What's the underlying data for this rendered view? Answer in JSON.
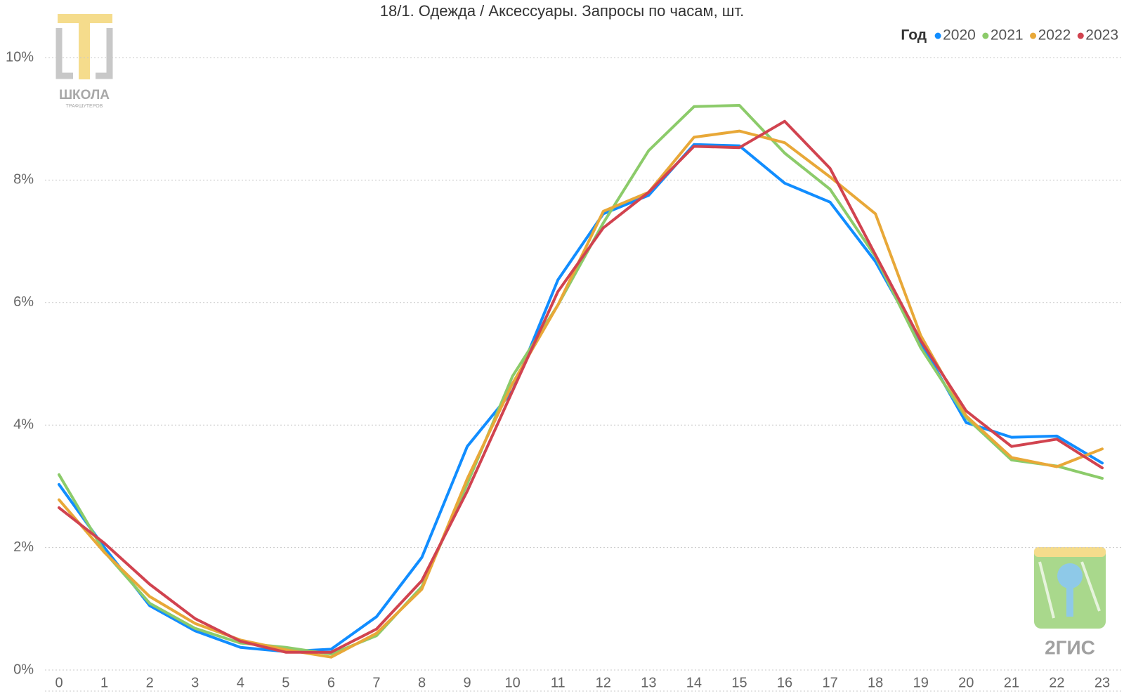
{
  "chart_data": {
    "type": "line",
    "title": "18/1. Одежда / Аксессуары. Запросы по часам, шт.",
    "legend_title": "Год",
    "legend_position": "top-right",
    "grid": true,
    "annotations": [
      "ШКОЛА",
      "ТРАФШУТЕРОВ",
      "2ГИС"
    ],
    "x": [
      0,
      1,
      2,
      3,
      4,
      5,
      6,
      7,
      8,
      9,
      10,
      11,
      12,
      13,
      14,
      15,
      16,
      17,
      18,
      19,
      20,
      21,
      22,
      23
    ],
    "xlim": [
      0,
      23
    ],
    "xticks": [
      0,
      1,
      2,
      3,
      4,
      5,
      6,
      7,
      8,
      9,
      10,
      11,
      12,
      13,
      14,
      15,
      16,
      17,
      18,
      19,
      20,
      21,
      22,
      23
    ],
    "ylim": [
      0,
      10
    ],
    "yticks": [
      {
        "value": 0,
        "label": "0%"
      },
      {
        "value": 2,
        "label": "2%"
      },
      {
        "value": 4,
        "label": "4%"
      },
      {
        "value": 6,
        "label": "6%"
      },
      {
        "value": 8,
        "label": "8%"
      },
      {
        "value": 10,
        "label": "10%"
      }
    ],
    "series": [
      {
        "name": "2020",
        "color": "#118dff",
        "values": [
          3.03,
          2.0,
          1.05,
          0.64,
          0.37,
          0.3,
          0.34,
          0.87,
          1.84,
          3.65,
          4.56,
          6.37,
          7.45,
          7.75,
          8.58,
          8.56,
          7.95,
          7.64,
          6.67,
          5.35,
          4.04,
          3.8,
          3.82,
          3.38
        ]
      },
      {
        "name": "2021",
        "color": "#8ccb6a",
        "values": [
          3.19,
          1.93,
          1.09,
          0.68,
          0.44,
          0.37,
          0.26,
          0.56,
          1.36,
          3.04,
          4.8,
          5.96,
          7.3,
          8.48,
          9.2,
          9.22,
          8.44,
          7.85,
          6.75,
          5.26,
          4.12,
          3.43,
          3.33,
          3.13
        ]
      },
      {
        "name": "2022",
        "color": "#e8a838",
        "values": [
          2.78,
          1.92,
          1.2,
          0.76,
          0.49,
          0.33,
          0.21,
          0.6,
          1.32,
          3.12,
          4.68,
          5.96,
          7.49,
          7.8,
          8.7,
          8.8,
          8.61,
          8.05,
          7.45,
          5.46,
          4.15,
          3.47,
          3.32,
          3.61
        ]
      },
      {
        "name": "2023",
        "color": "#d1434f",
        "values": [
          2.65,
          2.07,
          1.4,
          0.84,
          0.47,
          0.29,
          0.29,
          0.67,
          1.46,
          2.92,
          4.56,
          6.18,
          7.22,
          7.8,
          8.55,
          8.53,
          8.96,
          8.19,
          6.78,
          5.38,
          4.23,
          3.65,
          3.77,
          3.3
        ]
      }
    ]
  }
}
